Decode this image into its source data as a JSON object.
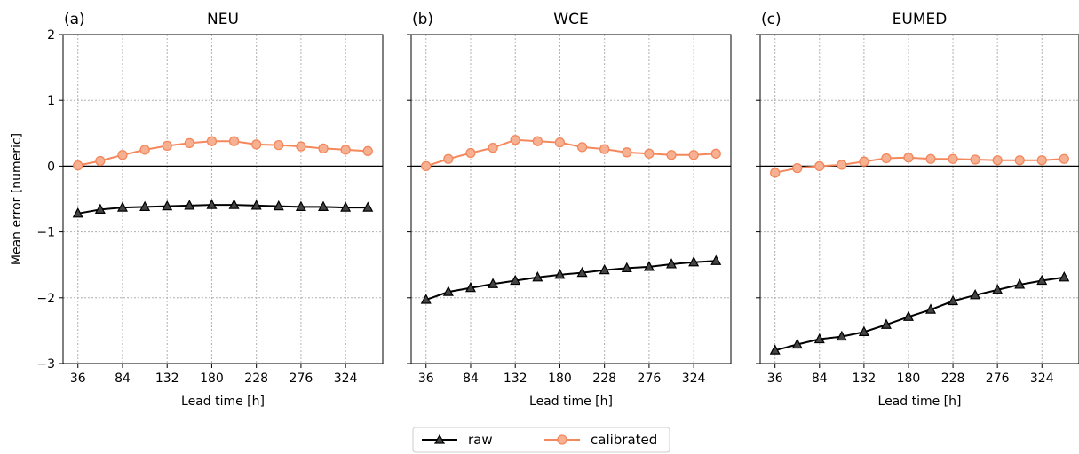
{
  "chart_data": [
    {
      "type": "line",
      "panel_label": "(a)",
      "title": "NEU",
      "xlabel": "Lead time [h]",
      "ylabel": "Mean error [numeric]",
      "x": [
        36,
        60,
        84,
        108,
        132,
        156,
        180,
        204,
        228,
        252,
        276,
        300,
        324,
        348
      ],
      "xticks": [
        "36",
        "84",
        "132",
        "180",
        "228",
        "276",
        "324"
      ],
      "yticks": [
        "−3",
        "−2",
        "−1",
        "0",
        "1",
        "2"
      ],
      "ylim": [
        -3,
        2
      ],
      "grid": true,
      "series": [
        {
          "name": "raw",
          "color": "#000000",
          "marker": "triangle",
          "values": [
            -0.72,
            -0.66,
            -0.63,
            -0.62,
            -0.61,
            -0.6,
            -0.59,
            -0.59,
            -0.6,
            -0.61,
            -0.62,
            -0.62,
            -0.63,
            -0.63
          ]
        },
        {
          "name": "calibrated",
          "color": "#f4875c",
          "marker": "circle",
          "values": [
            0.01,
            0.08,
            0.17,
            0.25,
            0.31,
            0.35,
            0.38,
            0.38,
            0.33,
            0.32,
            0.3,
            0.27,
            0.25,
            0.23
          ]
        }
      ]
    },
    {
      "type": "line",
      "panel_label": "(b)",
      "title": "WCE",
      "xlabel": "Lead time [h]",
      "x": [
        36,
        60,
        84,
        108,
        132,
        156,
        180,
        204,
        228,
        252,
        276,
        300,
        324,
        348
      ],
      "xticks": [
        "36",
        "84",
        "132",
        "180",
        "228",
        "276",
        "324"
      ],
      "ylim": [
        -3,
        2
      ],
      "grid": true,
      "series": [
        {
          "name": "raw",
          "color": "#000000",
          "marker": "triangle",
          "values": [
            -2.03,
            -1.91,
            -1.85,
            -1.79,
            -1.74,
            -1.69,
            -1.65,
            -1.62,
            -1.58,
            -1.55,
            -1.53,
            -1.49,
            -1.46,
            -1.44
          ]
        },
        {
          "name": "calibrated",
          "color": "#f4875c",
          "marker": "circle",
          "values": [
            0.0,
            0.11,
            0.2,
            0.28,
            0.4,
            0.38,
            0.36,
            0.29,
            0.26,
            0.21,
            0.19,
            0.17,
            0.17,
            0.19
          ]
        }
      ]
    },
    {
      "type": "line",
      "panel_label": "(c)",
      "title": "EUMED",
      "xlabel": "Lead time [h]",
      "x": [
        36,
        60,
        84,
        108,
        132,
        156,
        180,
        204,
        228,
        252,
        276,
        300,
        324,
        348
      ],
      "xticks": [
        "36",
        "84",
        "132",
        "180",
        "228",
        "276",
        "324"
      ],
      "ylim": [
        -3,
        2
      ],
      "grid": true,
      "series": [
        {
          "name": "raw",
          "color": "#000000",
          "marker": "triangle",
          "values": [
            -2.8,
            -2.71,
            -2.63,
            -2.59,
            -2.52,
            -2.41,
            -2.29,
            -2.18,
            -2.05,
            -1.96,
            -1.88,
            -1.8,
            -1.74,
            -1.69
          ]
        },
        {
          "name": "calibrated",
          "color": "#f4875c",
          "marker": "circle",
          "values": [
            -0.1,
            -0.03,
            0.0,
            0.02,
            0.07,
            0.12,
            0.13,
            0.11,
            0.11,
            0.1,
            0.09,
            0.09,
            0.09,
            0.11
          ]
        }
      ]
    }
  ],
  "legend": {
    "placement": "bottom-center",
    "entries": [
      {
        "label": "raw",
        "color": "#000000",
        "marker": "triangle"
      },
      {
        "label": "calibrated",
        "color": "#f4875c",
        "marker": "circle"
      }
    ]
  }
}
